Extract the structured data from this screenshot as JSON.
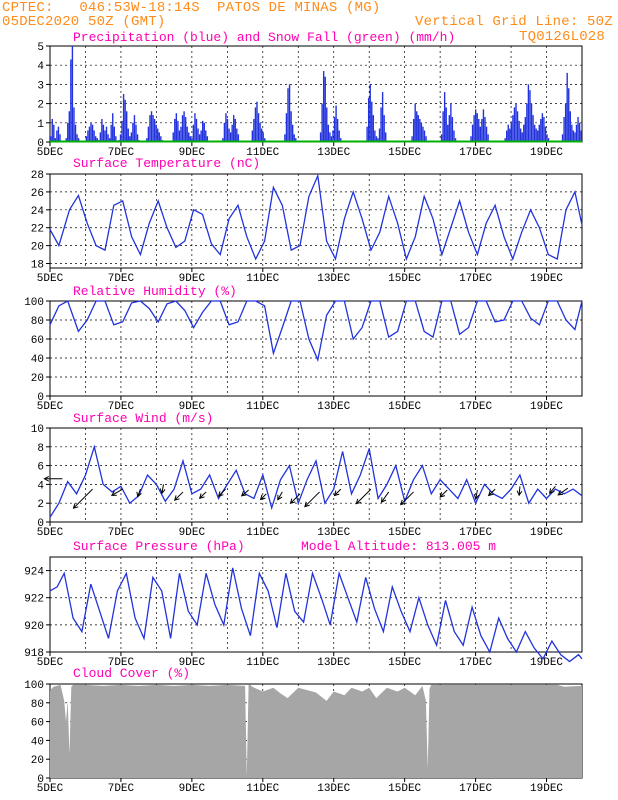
{
  "header": {
    "line1": "CPTEC:   046:53W-18:14S  PATOS DE MINAS (MG)",
    "line2": "05DEC2020 50Z (GMT)",
    "grid_note": "Vertical Grid Line: 50Z",
    "code": "TQ0126L028"
  },
  "colors": {
    "header": "#ff8c1a",
    "panel_title": "#ff00b4",
    "line": "#2233dd",
    "snow": "#00b000",
    "cloud": "#a6a6a6"
  },
  "chart_data": [
    {
      "id": "precip",
      "type": "bar",
      "title": "Precipitation (blue) and Snow Fall (green) (mm/h)",
      "ylim": [
        0,
        5
      ],
      "yticks": [
        0,
        1,
        2,
        3,
        4,
        5
      ],
      "xticks": [
        "5DEC",
        "7DEC",
        "9DEC",
        "11DEC",
        "13DEC",
        "15DEC",
        "17DEC",
        "19DEC"
      ],
      "xlim": [
        0,
        15
      ],
      "series": [
        {
          "name": "Precipitation",
          "values": [
            0.3,
            1.2,
            0.9,
            0.2,
            0.6,
            0.8,
            0.4,
            0,
            0,
            0,
            0.2,
            1.0,
            1.6,
            4.3,
            5.0,
            1.8,
            0.9,
            0.4,
            0.2,
            0,
            0,
            0,
            0,
            0.3,
            0.6,
            0.8,
            1.0,
            0.9,
            0.6,
            0.3,
            0.2,
            0.1,
            0.5,
            1.2,
            0.9,
            0.6,
            0.8,
            0.4,
            0.2,
            0.9,
            1.5,
            0.8,
            0.3,
            0,
            0.1,
            0.4,
            1.1,
            2.5,
            2.2,
            1.6,
            0.7,
            0.3,
            0.5,
            1.0,
            1.4,
            0.9,
            0.4,
            0.1,
            0,
            0,
            0,
            0,
            0.2,
            0.8,
            1.4,
            1.6,
            1.4,
            1.2,
            0.9,
            0.7,
            0.5,
            0.3,
            0.1,
            0,
            0,
            0,
            0,
            0,
            0,
            0.5,
            1.2,
            1.5,
            1.1,
            0.6,
            0.8,
            1.4,
            1.6,
            1.3,
            0.8,
            0.5,
            0.3,
            0.2,
            0.9,
            1.5,
            1.2,
            0.7,
            0.4,
            0.6,
            1.1,
            1.0,
            0.6,
            0.3,
            0,
            0,
            0,
            0,
            0,
            0,
            0,
            0,
            0,
            0.2,
            1.0,
            1.5,
            1.2,
            0.7,
            0.5,
            0.9,
            1.4,
            1.2,
            0.7,
            0.4,
            0,
            0,
            0,
            0,
            0,
            0,
            0,
            0,
            0.6,
            1.2,
            1.8,
            2.1,
            1.5,
            1.0,
            0.7,
            0.5,
            0.2,
            0,
            0,
            0,
            0,
            0,
            0,
            0,
            0,
            0,
            0,
            0,
            0,
            0.4,
            1.5,
            2.8,
            3.0,
            1.6,
            0.9,
            0.4,
            0.2,
            0,
            0,
            0,
            0,
            0,
            0,
            0,
            0,
            0,
            0,
            0,
            0,
            0,
            0,
            0,
            0.5,
            2.0,
            3.7,
            3.4,
            1.8,
            0.9,
            0.5,
            0.3,
            0.6,
            1.3,
            1.9,
            1.2,
            0.6,
            0.2,
            0,
            0,
            0,
            0,
            0,
            0,
            0,
            0,
            0,
            0,
            0,
            0,
            0,
            0,
            0,
            0,
            0.8,
            2.3,
            3.0,
            2.1,
            1.4,
            0.6,
            0.3,
            0.2,
            0.7,
            1.8,
            2.6,
            1.4,
            0.5,
            0,
            0,
            0,
            0,
            0,
            0,
            0,
            0,
            0,
            0,
            0,
            0,
            0,
            0,
            0,
            0,
            0.3,
            1.2,
            2.0,
            1.6,
            1.4,
            1.2,
            1.0,
            0.8,
            0.6,
            0.3,
            0,
            0,
            0,
            0,
            0,
            0,
            0,
            0,
            0,
            0.4,
            1.6,
            2.6,
            1.8,
            0.9,
            1.4,
            2.0,
            1.3,
            0.6,
            0.2,
            0,
            0,
            0,
            0,
            0,
            0,
            0,
            0,
            0,
            0.3,
            0.9,
            1.4,
            1.7,
            1.5,
            1.2,
            0.8,
            1.2,
            1.7,
            1.3,
            0.8,
            0.4,
            0,
            0,
            0,
            0,
            0,
            0,
            0,
            0,
            0,
            0,
            0.2,
            0.6,
            0.9,
            0.7,
            1.0,
            1.4,
            1.8,
            2.0,
            1.6,
            1.1,
            0.7,
            0.5,
            0.9,
            1.3,
            2.0,
            3.0,
            2.7,
            2.0,
            1.4,
            0.9,
            0.7,
            0.6,
            0.9,
            1.2,
            1.5,
            1.3,
            0.8,
            0.4,
            0.2,
            0,
            0,
            0,
            0,
            0,
            0,
            0,
            0,
            0.4,
            1.3,
            2.0,
            3.6,
            2.8,
            1.6,
            0.9,
            0.6,
            0.5,
            0.9,
            1.3,
            1.0,
            0.6
          ]
        }
      ]
    },
    {
      "id": "temp",
      "type": "line",
      "title": "Surface Temperature (nC)",
      "ylim": [
        17.5,
        28
      ],
      "yticks": [
        18,
        20,
        22,
        24,
        26,
        28
      ],
      "xticks": [
        "5DEC",
        "7DEC",
        "9DEC",
        "11DEC",
        "13DEC",
        "15DEC",
        "17DEC",
        "19DEC"
      ],
      "xlim": [
        0,
        15
      ],
      "x": [
        0,
        0.25,
        0.55,
        0.8,
        1.05,
        1.3,
        1.55,
        1.8,
        2.05,
        2.3,
        2.55,
        2.8,
        3.05,
        3.3,
        3.55,
        3.8,
        4.05,
        4.3,
        4.55,
        4.8,
        5.05,
        5.3,
        5.55,
        5.8,
        6.05,
        6.3,
        6.55,
        6.8,
        7.05,
        7.3,
        7.55,
        7.8,
        8.05,
        8.3,
        8.55,
        8.8,
        9.05,
        9.3,
        9.55,
        9.8,
        10.05,
        10.3,
        10.55,
        10.8,
        11.05,
        11.3,
        11.55,
        11.8,
        12.05,
        12.3,
        12.55,
        12.8,
        13.05,
        13.3,
        13.55,
        13.8,
        14.05,
        14.3,
        14.55,
        14.8,
        15
      ],
      "y": [
        21.8,
        20.0,
        24.0,
        25.6,
        22.5,
        20.0,
        19.5,
        24.5,
        25.0,
        21.0,
        19.0,
        22.5,
        25.0,
        22.0,
        19.8,
        20.5,
        24.0,
        23.5,
        20.2,
        19.0,
        23.0,
        24.5,
        21.0,
        18.5,
        20.5,
        26.5,
        24.5,
        19.5,
        20.0,
        25.5,
        27.8,
        20.5,
        18.5,
        23.0,
        26.0,
        23.0,
        19.5,
        21.5,
        25.5,
        22.5,
        18.5,
        21.0,
        25.5,
        23.0,
        19.0,
        22.0,
        25.0,
        21.5,
        19.0,
        22.5,
        24.5,
        21.0,
        18.5,
        21.5,
        24.0,
        22.0,
        19.0,
        18.5,
        24.0,
        26.0,
        22.3
      ]
    },
    {
      "id": "rh",
      "type": "line",
      "title": "Relative Humidity (%)",
      "ylim": [
        0,
        100
      ],
      "yticks": [
        0,
        20,
        40,
        60,
        80,
        100
      ],
      "xticks": [
        "5DEC",
        "7DEC",
        "9DEC",
        "11DEC",
        "13DEC",
        "15DEC",
        "17DEC",
        "19DEC"
      ],
      "xlim": [
        0,
        15
      ],
      "x": [
        0,
        0.25,
        0.5,
        0.8,
        1.05,
        1.3,
        1.55,
        1.8,
        2.05,
        2.3,
        2.55,
        2.8,
        3.05,
        3.3,
        3.55,
        3.8,
        4.05,
        4.3,
        4.55,
        4.8,
        5.05,
        5.3,
        5.55,
        5.8,
        6.05,
        6.3,
        6.55,
        6.8,
        7.05,
        7.3,
        7.55,
        7.8,
        8.05,
        8.3,
        8.55,
        8.8,
        9.05,
        9.3,
        9.55,
        9.8,
        10.05,
        10.3,
        10.55,
        10.8,
        11.05,
        11.3,
        11.55,
        11.8,
        12.05,
        12.3,
        12.55,
        12.8,
        13.05,
        13.3,
        13.55,
        13.8,
        14.05,
        14.3,
        14.55,
        14.8,
        15
      ],
      "y": [
        75,
        95,
        100,
        68,
        80,
        100,
        100,
        75,
        78,
        98,
        100,
        92,
        78,
        97,
        100,
        90,
        72,
        88,
        100,
        100,
        75,
        78,
        100,
        100,
        95,
        45,
        72,
        100,
        100,
        60,
        38,
        85,
        100,
        100,
        60,
        72,
        100,
        100,
        62,
        68,
        100,
        100,
        68,
        62,
        100,
        100,
        65,
        72,
        100,
        100,
        78,
        80,
        100,
        100,
        82,
        75,
        100,
        100,
        80,
        70,
        100
      ]
    },
    {
      "id": "wind",
      "type": "line",
      "title": "Surface Wind (m/s)",
      "ylim": [
        0,
        10
      ],
      "yticks": [
        0,
        2,
        4,
        6,
        8,
        10
      ],
      "xticks": [
        "5DEC",
        "7DEC",
        "9DEC",
        "11DEC",
        "13DEC",
        "15DEC",
        "17DEC",
        "19DEC"
      ],
      "xlim": [
        0,
        15
      ],
      "x": [
        0,
        0.25,
        0.5,
        0.75,
        1.0,
        1.25,
        1.5,
        1.75,
        2.0,
        2.25,
        2.5,
        2.75,
        3.0,
        3.25,
        3.5,
        3.75,
        4.0,
        4.25,
        4.5,
        4.75,
        5.0,
        5.25,
        5.5,
        5.75,
        6.0,
        6.25,
        6.5,
        6.75,
        7.0,
        7.25,
        7.5,
        7.75,
        8.0,
        8.25,
        8.5,
        8.75,
        9.0,
        9.25,
        9.5,
        9.75,
        10.0,
        10.25,
        10.5,
        10.75,
        11.0,
        11.25,
        11.5,
        11.75,
        12.0,
        12.25,
        12.5,
        12.75,
        13.0,
        13.25,
        13.5,
        13.75,
        14.0,
        14.25,
        14.5,
        14.75,
        15
      ],
      "y": [
        0.5,
        2.0,
        4.3,
        3.0,
        5.0,
        8.0,
        4.0,
        3.2,
        3.8,
        2.0,
        2.8,
        5.0,
        4.0,
        2.2,
        3.5,
        6.5,
        3.0,
        3.5,
        5.0,
        2.5,
        4.0,
        5.5,
        3.0,
        2.5,
        5.0,
        1.5,
        4.5,
        6.0,
        2.0,
        4.5,
        6.5,
        2.0,
        3.5,
        7.5,
        3.0,
        5.0,
        7.8,
        2.5,
        4.0,
        6.0,
        2.2,
        4.5,
        6.0,
        3.0,
        4.5,
        3.5,
        2.5,
        4.5,
        2.0,
        4.0,
        3.0,
        2.5,
        3.5,
        5.0,
        2.0,
        3.5,
        2.5,
        3.5,
        3.0,
        3.5,
        2.8
      ],
      "arrows": [
        {
          "x": 0.35,
          "y": 4.6,
          "dir_deg": 180,
          "len": 2.0
        },
        {
          "x": 1.2,
          "y": 3.5,
          "dir_deg": 225,
          "len": 3.0
        },
        {
          "x": 2.05,
          "y": 3.5,
          "dir_deg": 210,
          "len": 1.4
        },
        {
          "x": 2.55,
          "y": 3.5,
          "dir_deg": 250,
          "len": 0.9
        },
        {
          "x": 3.2,
          "y": 4.0,
          "dir_deg": 260,
          "len": 1.0
        },
        {
          "x": 3.75,
          "y": 3.2,
          "dir_deg": 225,
          "len": 1.3
        },
        {
          "x": 4.4,
          "y": 3.2,
          "dir_deg": 225,
          "len": 1.0
        },
        {
          "x": 4.95,
          "y": 3.5,
          "dir_deg": 225,
          "len": 1.1
        },
        {
          "x": 5.6,
          "y": 3.4,
          "dir_deg": 220,
          "len": 1.0
        },
        {
          "x": 6.1,
          "y": 3.0,
          "dir_deg": 225,
          "len": 0.9
        },
        {
          "x": 6.55,
          "y": 3.2,
          "dir_deg": 240,
          "len": 1.0
        },
        {
          "x": 7.05,
          "y": 3.0,
          "dir_deg": 225,
          "len": 1.5
        },
        {
          "x": 7.6,
          "y": 3.2,
          "dir_deg": 225,
          "len": 2.3
        },
        {
          "x": 8.2,
          "y": 3.5,
          "dir_deg": 225,
          "len": 1.0
        },
        {
          "x": 9.05,
          "y": 3.5,
          "dir_deg": 225,
          "len": 2.3
        },
        {
          "x": 9.55,
          "y": 3.2,
          "dir_deg": 235,
          "len": 1.4
        },
        {
          "x": 10.25,
          "y": 3.2,
          "dir_deg": 225,
          "len": 2.0
        },
        {
          "x": 11.2,
          "y": 3.4,
          "dir_deg": 225,
          "len": 1.1
        },
        {
          "x": 12.05,
          "y": 3.4,
          "dir_deg": 260,
          "len": 1.0
        },
        {
          "x": 12.55,
          "y": 3.5,
          "dir_deg": 225,
          "len": 1.0
        },
        {
          "x": 13.25,
          "y": 3.8,
          "dir_deg": 265,
          "len": 1.0
        },
        {
          "x": 14.25,
          "y": 3.8,
          "dir_deg": 230,
          "len": 1.0
        },
        {
          "x": 14.6,
          "y": 3.6,
          "dir_deg": 215,
          "len": 1.3
        }
      ]
    },
    {
      "id": "pres",
      "type": "line",
      "title": "Surface Pressure (hPa)",
      "annotation": "Model Altitude: 813.005 m",
      "ylim": [
        918,
        925
      ],
      "yticks": [
        918,
        920,
        922,
        924
      ],
      "xticks": [
        "5DEC",
        "7DEC",
        "9DEC",
        "11DEC",
        "13DEC",
        "15DEC",
        "17DEC",
        "19DEC"
      ],
      "xlim": [
        0,
        15
      ],
      "x": [
        0,
        0.2,
        0.4,
        0.65,
        0.9,
        1.15,
        1.4,
        1.65,
        1.9,
        2.15,
        2.4,
        2.65,
        2.9,
        3.15,
        3.4,
        3.65,
        3.9,
        4.15,
        4.4,
        4.65,
        4.9,
        5.15,
        5.4,
        5.65,
        5.9,
        6.15,
        6.4,
        6.65,
        6.9,
        7.15,
        7.4,
        7.65,
        7.9,
        8.15,
        8.4,
        8.65,
        8.9,
        9.15,
        9.4,
        9.65,
        9.9,
        10.15,
        10.4,
        10.65,
        10.9,
        11.15,
        11.4,
        11.65,
        11.9,
        12.15,
        12.4,
        12.65,
        12.9,
        13.15,
        13.4,
        13.65,
        13.9,
        14.15,
        14.4,
        14.65,
        14.9,
        15
      ],
      "y": [
        922.5,
        922.8,
        923.8,
        920.5,
        919.5,
        923.0,
        921.0,
        919.0,
        922.5,
        923.8,
        920.5,
        919.0,
        923.5,
        922.5,
        919.0,
        923.8,
        921.0,
        920.0,
        923.8,
        921.5,
        920.0,
        924.2,
        921.2,
        919.2,
        923.8,
        922.5,
        919.8,
        923.8,
        921.0,
        920.2,
        923.8,
        922.0,
        920.0,
        923.8,
        922.0,
        920.2,
        923.5,
        921.2,
        919.5,
        922.8,
        921.0,
        919.5,
        922.0,
        920.0,
        918.5,
        921.8,
        919.5,
        918.5,
        921.3,
        919.2,
        918.0,
        920.5,
        919.0,
        918.0,
        919.5,
        918.3,
        917.5,
        918.8,
        917.8,
        917.3,
        917.8,
        917.5
      ]
    },
    {
      "id": "cloud",
      "type": "area",
      "title": "Cloud Cover (%)",
      "ylim": [
        0,
        100
      ],
      "yticks": [
        0,
        20,
        40,
        60,
        80,
        100
      ],
      "xticks": [
        "5DEC",
        "7DEC",
        "9DEC",
        "11DEC",
        "13DEC",
        "15DEC",
        "17DEC",
        "19DEC"
      ],
      "xlim": [
        0,
        15
      ],
      "x": [
        0,
        0.1,
        0.3,
        0.4,
        0.45,
        0.5,
        0.55,
        0.6,
        0.65,
        1.0,
        1.5,
        2.0,
        2.5,
        3.0,
        3.5,
        4.0,
        4.5,
        5.0,
        5.5,
        5.55,
        5.6,
        5.65,
        5.7,
        6.0,
        6.3,
        6.5,
        6.7,
        7.0,
        7.5,
        7.8,
        8.0,
        8.3,
        8.5,
        8.8,
        9.0,
        9.2,
        9.5,
        9.8,
        10.0,
        10.3,
        10.5,
        10.6,
        10.65,
        10.7,
        10.75,
        11.0,
        11.5,
        12.0,
        12.5,
        13.0,
        13.5,
        14.0,
        14.3,
        14.5,
        15
      ],
      "y": [
        93,
        97,
        99,
        82,
        60,
        82,
        25,
        97,
        99,
        99,
        98,
        99,
        98,
        99,
        98,
        99,
        98,
        99,
        98,
        2,
        99,
        99,
        97,
        92,
        96,
        90,
        85,
        96,
        91,
        82,
        92,
        88,
        96,
        92,
        96,
        85,
        96,
        92,
        96,
        88,
        98,
        82,
        10,
        95,
        99,
        99,
        99,
        99,
        99,
        99,
        99,
        99,
        99,
        97,
        98
      ]
    }
  ]
}
